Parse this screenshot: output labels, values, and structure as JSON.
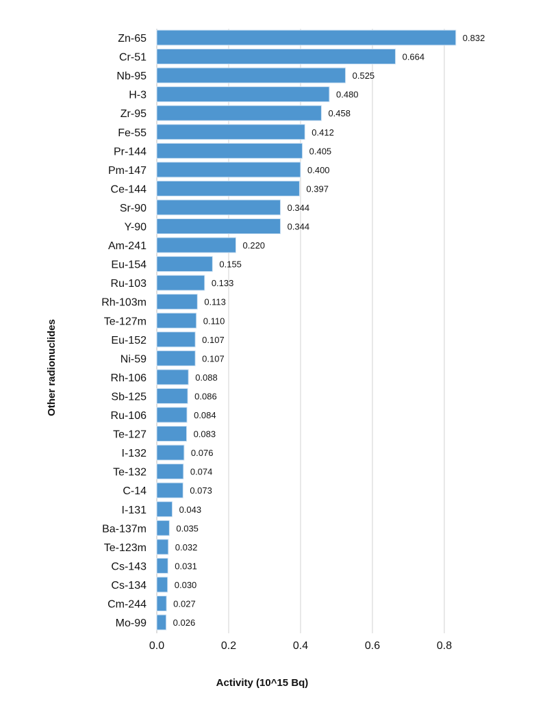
{
  "chart_data": {
    "type": "bar",
    "orientation": "horizontal",
    "xlabel": "Activity (10^15 Bq)",
    "ylabel": "Other radionuclides",
    "xlim": [
      0,
      0.85
    ],
    "xticks": [
      "0.0",
      "0.2",
      "0.4",
      "0.6",
      "0.8"
    ],
    "grid": true,
    "bar_color": "#4f96d0",
    "categories": [
      "Zn-65",
      "Cr-51",
      "Nb-95",
      "H-3",
      "Zr-95",
      "Fe-55",
      "Pr-144",
      "Pm-147",
      "Ce-144",
      "Sr-90",
      "Y-90",
      "Am-241",
      "Eu-154",
      "Ru-103",
      "Rh-103m",
      "Te-127m",
      "Eu-152",
      "Ni-59",
      "Rh-106",
      "Sb-125",
      "Ru-106",
      "Te-127",
      "I-132",
      "Te-132",
      "C-14",
      "I-131",
      "Ba-137m",
      "Te-123m",
      "Cs-143",
      "Cs-134",
      "Cm-244",
      "Mo-99"
    ],
    "values": [
      0.832,
      0.664,
      0.525,
      0.48,
      0.458,
      0.412,
      0.405,
      0.4,
      0.397,
      0.344,
      0.344,
      0.22,
      0.155,
      0.133,
      0.113,
      0.11,
      0.107,
      0.107,
      0.088,
      0.086,
      0.084,
      0.083,
      0.076,
      0.074,
      0.073,
      0.043,
      0.035,
      0.032,
      0.031,
      0.03,
      0.027,
      0.026
    ],
    "data_labels": [
      "0.832",
      "0.664",
      "0.525",
      "0.480",
      "0.458",
      "0.412",
      "0.405",
      "0.400",
      "0.397",
      "0.344",
      "0.344",
      "0.220",
      "0.155",
      "0.133",
      "0.113",
      "0.110",
      "0.107",
      "0.107",
      "0.088",
      "0.086",
      "0.084",
      "0.083",
      "0.076",
      "0.074",
      "0.073",
      "0.043",
      "0.035",
      "0.032",
      "0.031",
      "0.030",
      "0.027",
      "0.026"
    ]
  }
}
